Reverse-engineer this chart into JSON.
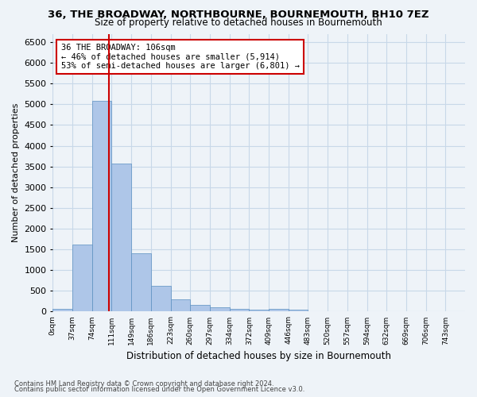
{
  "title": "36, THE BROADWAY, NORTHBOURNE, BOURNEMOUTH, BH10 7EZ",
  "subtitle": "Size of property relative to detached houses in Bournemouth",
  "xlabel": "Distribution of detached houses by size in Bournemouth",
  "ylabel": "Number of detached properties",
  "footer1": "Contains HM Land Registry data © Crown copyright and database right 2024.",
  "footer2": "Contains public sector information licensed under the Open Government Licence v3.0.",
  "annotation_line1": "36 THE BROADWAY: 106sqm",
  "annotation_line2": "← 46% of detached houses are smaller (5,914)",
  "annotation_line3": "53% of semi-detached houses are larger (6,801) →",
  "bar_color": "#aec6e8",
  "bar_edge_color": "#5a8fc0",
  "grid_color": "#c8d8e8",
  "vline_color": "#cc0000",
  "annotation_box_color": "#ffffff",
  "annotation_box_edge": "#cc0000",
  "background_color": "#eef3f8",
  "bins": [
    "0sqm",
    "37sqm",
    "74sqm",
    "111sqm",
    "149sqm",
    "186sqm",
    "223sqm",
    "260sqm",
    "297sqm",
    "334sqm",
    "372sqm",
    "409sqm",
    "446sqm",
    "483sqm",
    "520sqm",
    "557sqm",
    "594sqm",
    "632sqm",
    "669sqm",
    "706sqm",
    "743sqm"
  ],
  "values": [
    75,
    1620,
    5080,
    3570,
    1400,
    620,
    300,
    155,
    100,
    60,
    40,
    60,
    55,
    0,
    0,
    0,
    0,
    0,
    0,
    0,
    0
  ],
  "ylim": [
    0,
    6700
  ],
  "yticks": [
    0,
    500,
    1000,
    1500,
    2000,
    2500,
    3000,
    3500,
    4000,
    4500,
    5000,
    5500,
    6000,
    6500
  ],
  "vline_pos": 2.86
}
